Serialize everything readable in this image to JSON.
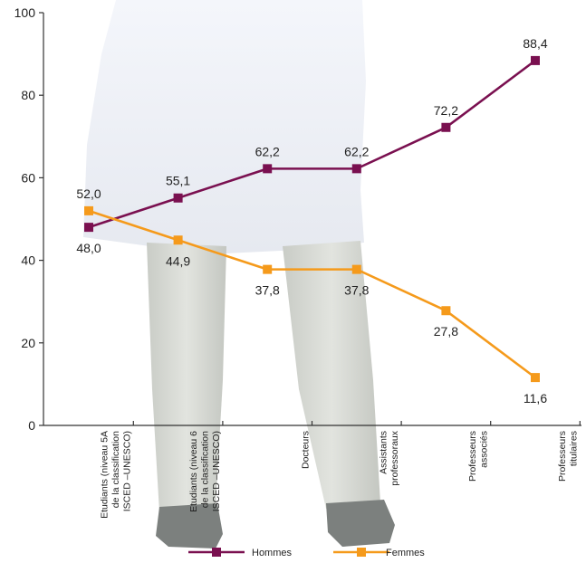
{
  "chart_data": {
    "type": "line",
    "title": "",
    "xlabel": "",
    "ylabel": "",
    "ylim": [
      0,
      100
    ],
    "yticks": [
      0,
      20,
      40,
      60,
      80,
      100
    ],
    "categories": [
      [
        "Etudiants (niveau 5A",
        "de la classification",
        "ISCED –UNESCO)"
      ],
      [
        "Etudiants (niveau 6",
        "de la classification",
        "ISCED –UNESCO)"
      ],
      [
        "Docteurs"
      ],
      [
        "Assistants",
        "professoraux"
      ],
      [
        "Professeurs",
        "associés"
      ],
      [
        "Professeurs",
        "titulaires"
      ]
    ],
    "series": [
      {
        "name": "Hommes",
        "color": "#7a1050",
        "values": [
          48.0,
          55.1,
          62.2,
          62.2,
          72.2,
          88.4
        ],
        "labels": [
          "48,0",
          "55,1",
          "62,2",
          "62,2",
          "72,2",
          "88,4"
        ]
      },
      {
        "name": "Femmes",
        "color": "#f59a1b",
        "values": [
          52.0,
          44.9,
          37.8,
          37.8,
          27.8,
          11.6
        ],
        "labels": [
          "52,0",
          "44,9",
          "37,8",
          "37,8",
          "27,8",
          "11,6"
        ]
      }
    ],
    "grid": false,
    "legend": "bottom"
  }
}
